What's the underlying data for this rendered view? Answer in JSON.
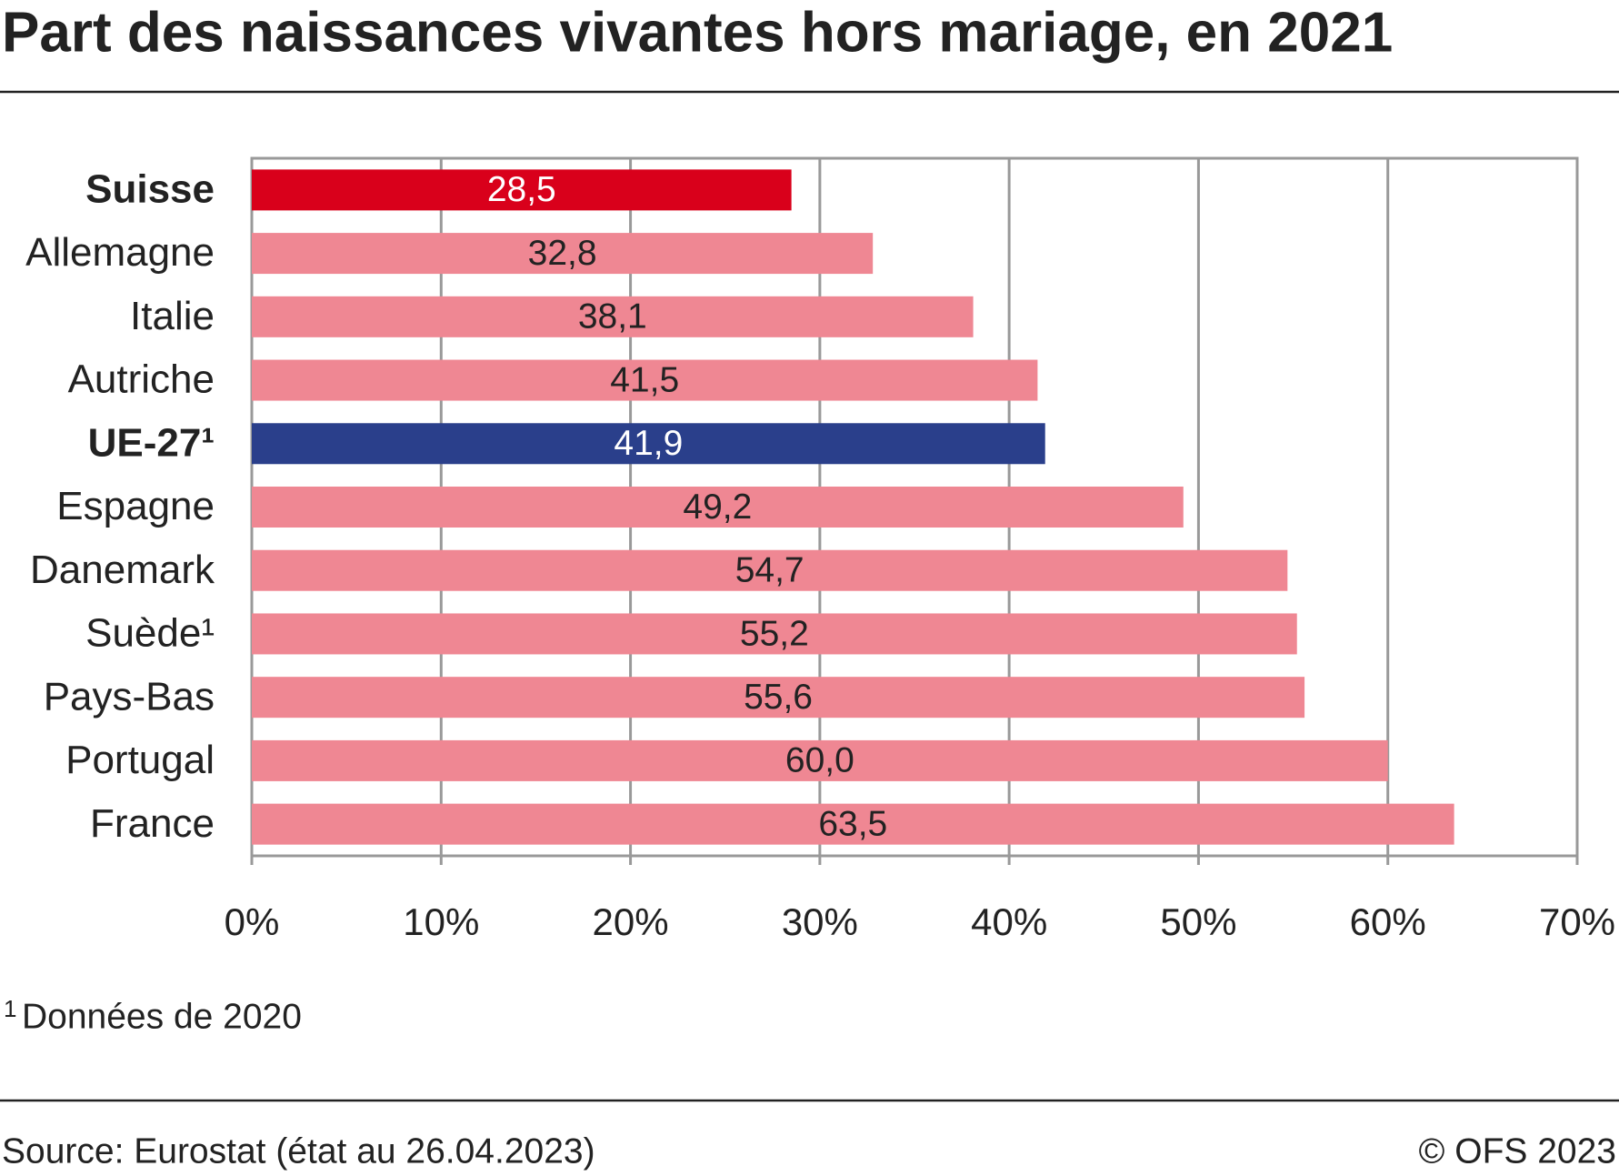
{
  "chart_data": {
    "type": "bar",
    "orientation": "horizontal",
    "title": "Part des naissances vivantes hors mariage, en 2021",
    "categories": [
      "Suisse",
      "Allemagne",
      "Italie",
      "Autriche",
      "UE-27¹",
      "Espagne",
      "Danemark",
      "Suède¹",
      "Pays-Bas",
      "Portugal",
      "France"
    ],
    "values": [
      28.5,
      32.8,
      38.1,
      41.5,
      41.9,
      49.2,
      54.7,
      55.2,
      55.6,
      60.0,
      63.5
    ],
    "value_labels": [
      "28,5",
      "32,8",
      "38,1",
      "41,5",
      "41,9",
      "49,2",
      "54,7",
      "55,2",
      "55,6",
      "60,0",
      "63,5"
    ],
    "color": "#ef8793",
    "colors": [
      "#d9001b",
      "#ef8793",
      "#ef8793",
      "#ef8793",
      "#2a3f8b",
      "#ef8793",
      "#ef8793",
      "#ef8793",
      "#ef8793",
      "#ef8793",
      "#ef8793"
    ],
    "xlim": [
      0,
      70
    ],
    "xticks": [
      {
        "value": 0,
        "label": "0%"
      },
      {
        "value": 10,
        "label": "10%"
      },
      {
        "value": 20,
        "label": "20%"
      },
      {
        "value": 30,
        "label": "30%"
      },
      {
        "value": 40,
        "label": "40%"
      },
      {
        "value": 50,
        "label": "50%"
      },
      {
        "value": 60,
        "label": "60%"
      },
      {
        "value": 70,
        "label": "70%"
      }
    ],
    "grid": true,
    "footnote": {
      "marker": "1",
      "text": "Données de 2020"
    },
    "source": "Source: Eurostat (état au 26.04.2023)",
    "copyright": "© OFS 2023"
  }
}
